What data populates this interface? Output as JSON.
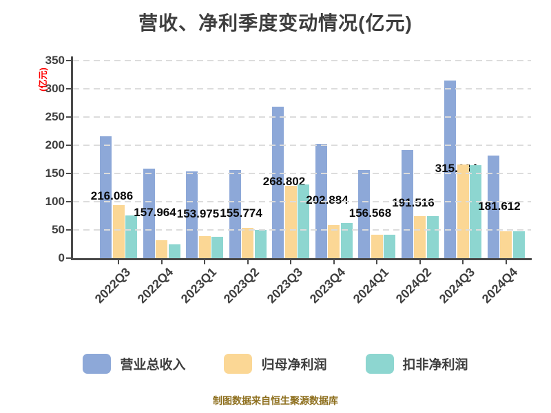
{
  "title": "营收、净利季度变动情况(亿元)",
  "y_axis_unit": "(亿元)",
  "footer": "制图数据来自恒生聚源数据库",
  "colors": {
    "revenue_bar": "#8DA8D8",
    "net_profit_bar": "#FBD795",
    "non_gaap_bar": "#8DD6D0",
    "title_text": "#3d3d3d",
    "axis_text": "#3f3f3f",
    "unit_label_red": "#ff0000",
    "footer_gold": "#8e6f1e",
    "gridline": "#dcdcdc",
    "axis_line": "#4a4a4a"
  },
  "chart_data": {
    "type": "bar",
    "title": "营收、净利季度变动情况(亿元)",
    "ylabel": "(亿元)",
    "xlabel": "",
    "categories": [
      "2022Q3",
      "2022Q4",
      "2023Q1",
      "2023Q2",
      "2023Q3",
      "2023Q4",
      "2024Q1",
      "2024Q2",
      "2024Q3",
      "2024Q4"
    ],
    "series": [
      {
        "name": "营业总收入",
        "key": "revenue",
        "color": "#8DA8D8",
        "values": [
          216.086,
          157.964,
          153.975,
          155.774,
          268.802,
          202.884,
          156.568,
          191.516,
          315.234,
          181.612
        ],
        "value_labels": [
          "216.086",
          "157.964",
          "153.975",
          "155.774",
          "268.802",
          "202.884",
          "156.568",
          "191.516",
          "315.234",
          "181.612"
        ]
      },
      {
        "name": "归母净利润",
        "key": "net-profit",
        "color": "#FBD795",
        "values": [
          94,
          32,
          39,
          54,
          128,
          59,
          41,
          75,
          166,
          47
        ]
      },
      {
        "name": "扣非净利润",
        "key": "non-gaap-net-profit",
        "color": "#8DD6D0",
        "values": [
          75.5,
          25,
          38,
          50,
          131,
          62.5,
          42,
          74,
          164.5,
          48
        ]
      }
    ],
    "ylim": [
      0,
      350
    ],
    "yticks": [
      0,
      50,
      100,
      150,
      200,
      250,
      300,
      350
    ],
    "grid": "horizontal-dashed",
    "legend_position": "bottom",
    "value_label_placement": "mid-height of revenue bar, behind later bars"
  }
}
